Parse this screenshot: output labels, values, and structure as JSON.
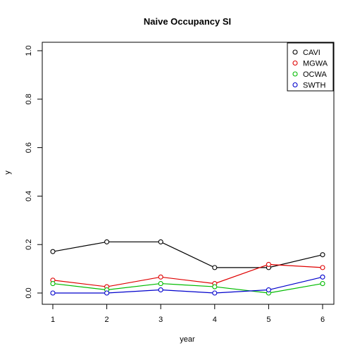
{
  "chart_data": {
    "type": "line",
    "title": "Naive Occupancy SI",
    "xlabel": "year",
    "ylabel": "y",
    "x": [
      1,
      2,
      3,
      4,
      5,
      6
    ],
    "xticks": [
      "1",
      "2",
      "3",
      "4",
      "5",
      "6"
    ],
    "yticks": [
      "0.0",
      "0.2",
      "0.4",
      "0.6",
      "0.8",
      "1.0"
    ],
    "xlim": [
      1,
      6
    ],
    "ylim": [
      0,
      1
    ],
    "grid": false,
    "legend_position": "top-right",
    "series": [
      {
        "name": "CAVI",
        "color": "#000000",
        "values": [
          0.171,
          0.211,
          0.211,
          0.105,
          0.105,
          0.158
        ]
      },
      {
        "name": "MGWA",
        "color": "#DF0000",
        "values": [
          0.053,
          0.026,
          0.066,
          0.039,
          0.118,
          0.105
        ]
      },
      {
        "name": "OCWA",
        "color": "#00BB00",
        "values": [
          0.039,
          0.013,
          0.039,
          0.026,
          0.0,
          0.039
        ]
      },
      {
        "name": "SWTH",
        "color": "#0000CC",
        "values": [
          0.0,
          0.0,
          0.013,
          0.0,
          0.013,
          0.066
        ]
      }
    ]
  }
}
